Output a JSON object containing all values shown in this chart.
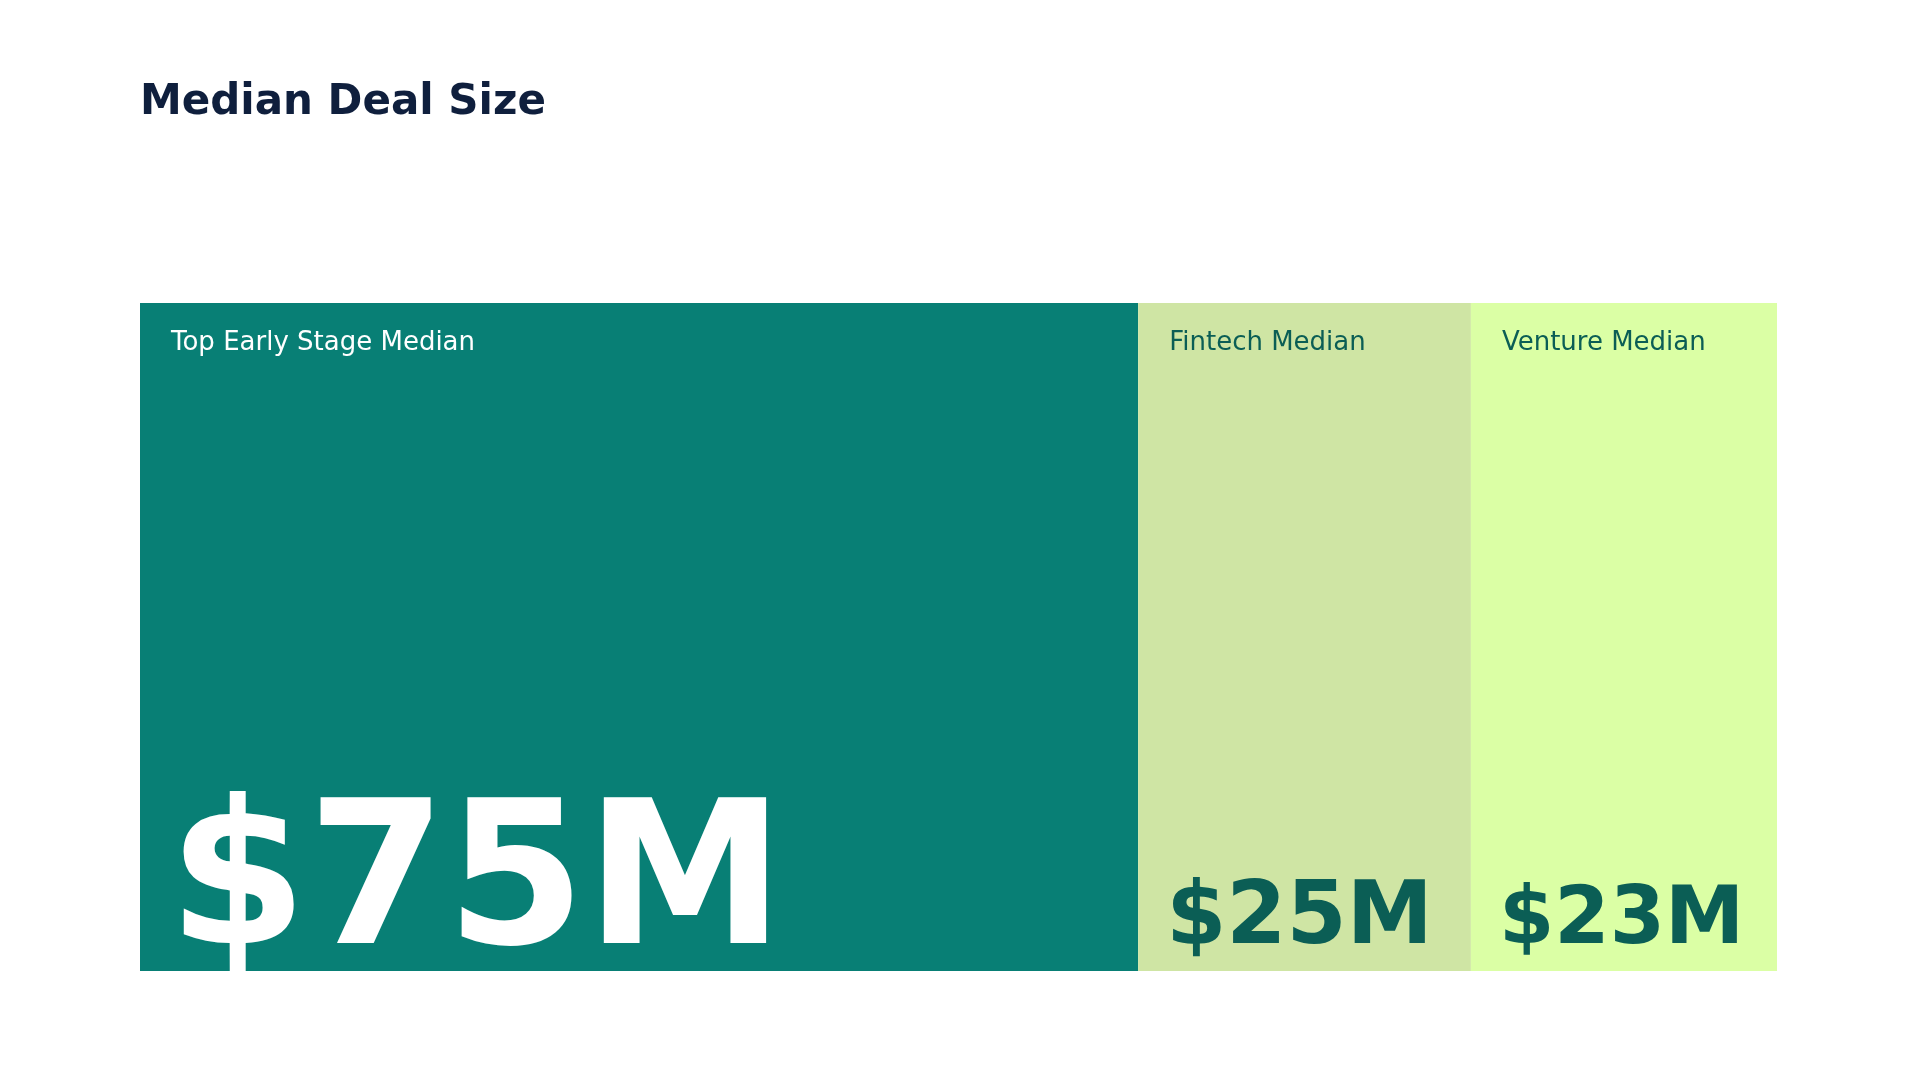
{
  "chart_data": {
    "type": "other",
    "title": "Median Deal Size",
    "categories": [
      "Top Early Stage Median",
      "Fintech Median",
      "Venture Median"
    ],
    "values": [
      75,
      25,
      23
    ],
    "value_labels": [
      "$75M",
      "$25M",
      "$23M"
    ],
    "colors": [
      "#087f75",
      "#cfe5a4",
      "#dbffa5"
    ]
  }
}
